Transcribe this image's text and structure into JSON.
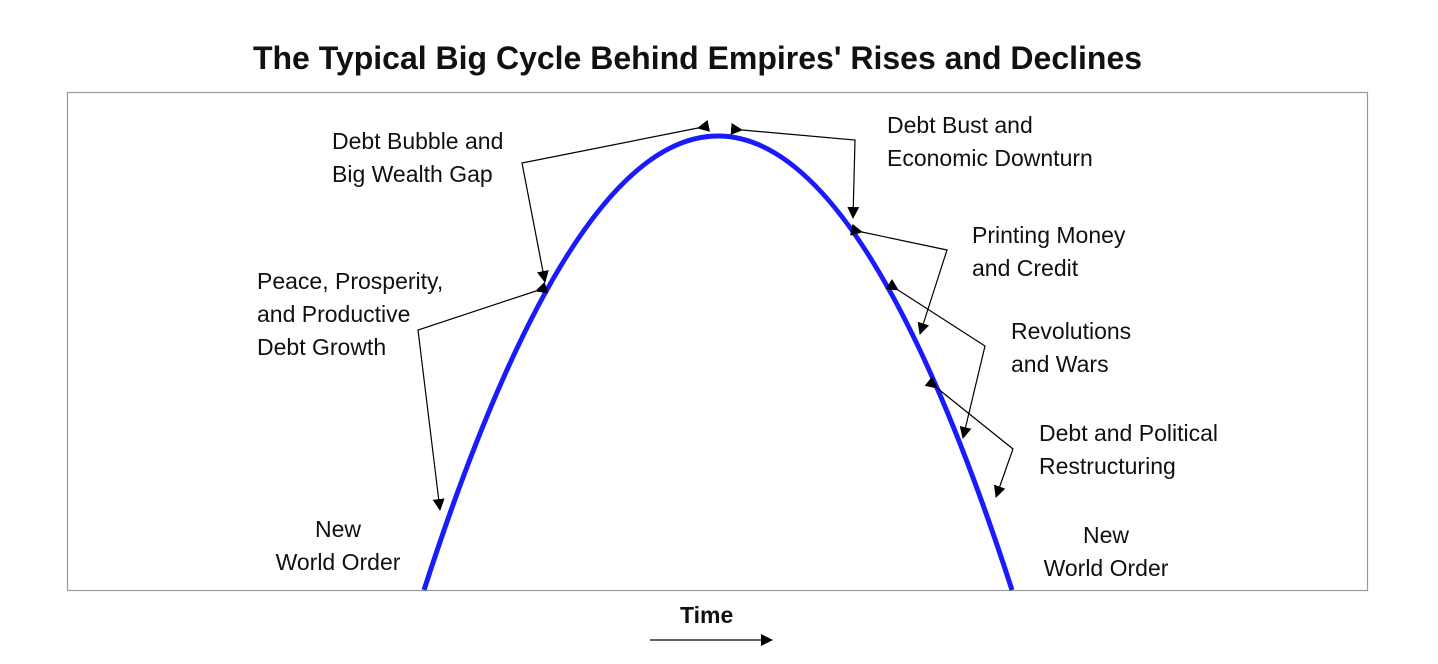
{
  "title": "The Typical Big Cycle Behind Empires' Rises and Declines",
  "x_axis_label": "Time",
  "curve_color": "#1a1aff",
  "labels": {
    "debt_bubble": [
      "Debt Bubble and",
      "Big Wealth Gap"
    ],
    "peace": [
      "Peace, Prosperity,",
      "and Productive",
      "Debt Growth"
    ],
    "new_order_left": [
      "New",
      "World Order"
    ],
    "debt_bust": [
      "Debt Bust and",
      "Economic Downturn"
    ],
    "printing": [
      "Printing Money",
      "and Credit"
    ],
    "revolutions": [
      "Revolutions",
      "and Wars"
    ],
    "restructuring": [
      "Debt and Political",
      "Restructuring"
    ],
    "new_order_right": [
      "New",
      "World Order"
    ]
  }
}
